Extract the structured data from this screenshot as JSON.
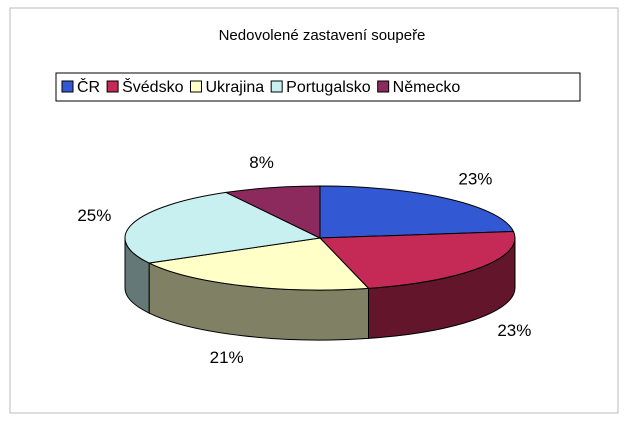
{
  "chart_data": {
    "type": "pie",
    "title": "Nedovolené zastavení soupeře",
    "categories": [
      "ČR",
      "Švédsko",
      "Ukrajina",
      "Portugalsko",
      "Německo"
    ],
    "values": [
      23,
      23,
      21,
      25,
      8
    ],
    "value_labels": [
      "23%",
      "23%",
      "21%",
      "25%",
      "8%"
    ],
    "colors": [
      "#3358d4",
      "#c42a55",
      "#ffffc8",
      "#c8f0f0",
      "#8c2a5e"
    ],
    "legend": "top"
  }
}
